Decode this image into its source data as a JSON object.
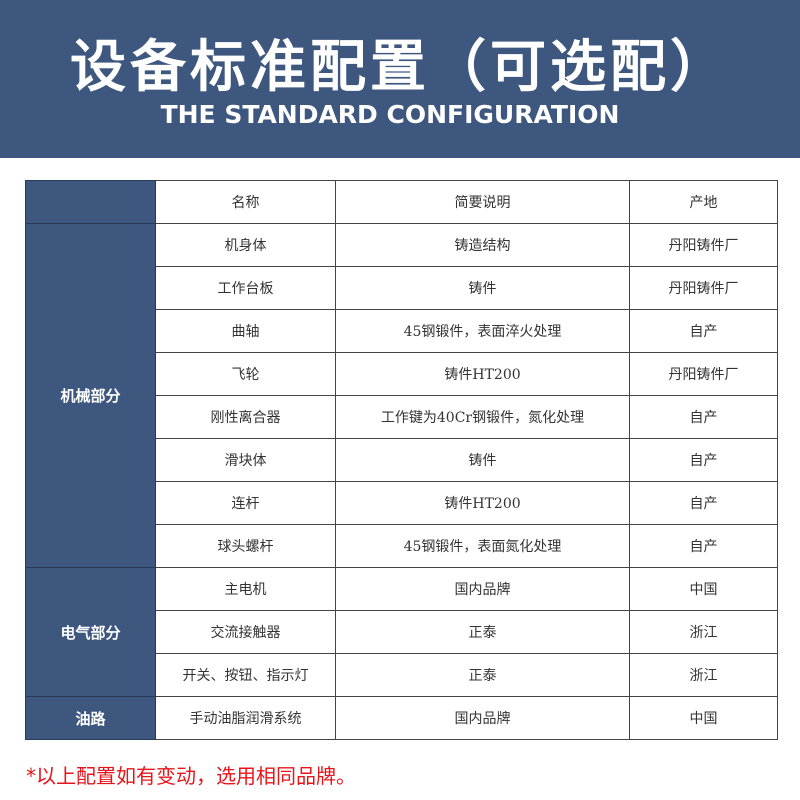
{
  "header": {
    "title": "设备标准配置（可选配）",
    "subtitle": "THE STANDARD CONFIGURATION"
  },
  "table": {
    "columns": [
      "",
      "名称",
      "简要说明",
      "产地"
    ],
    "groups": [
      {
        "category": "机械部分",
        "rows": [
          [
            "机身体",
            "铸造结构",
            "丹阳铸件厂"
          ],
          [
            "工作台板",
            "铸件",
            "丹阳铸件厂"
          ],
          [
            "曲轴",
            "45钢锻件，表面淬火处理",
            "自产"
          ],
          [
            "飞轮",
            "铸件HT200",
            "丹阳铸件厂"
          ],
          [
            "刚性离合器",
            "工作键为40Cr钢锻件，氮化处理",
            "自产"
          ],
          [
            "滑块体",
            "铸件",
            "自产"
          ],
          [
            "连杆",
            "铸件HT200",
            "自产"
          ],
          [
            "球头螺杆",
            "45钢锻件，表面氮化处理",
            "自产"
          ]
        ]
      },
      {
        "category": "电气部分",
        "rows": [
          [
            "主电机",
            "国内品牌",
            "中国"
          ],
          [
            "交流接触器",
            "正泰",
            "浙江"
          ],
          [
            "开关、按钮、指示灯",
            "正泰",
            "浙江"
          ]
        ]
      },
      {
        "category": "油路",
        "rows": [
          [
            "手动油脂润滑系统",
            "国内品牌",
            "中国"
          ]
        ]
      }
    ]
  },
  "note": "*以上配置如有变动，选用相同品牌。",
  "colors": {
    "banner": "#3e577f",
    "note": "#e8141b"
  }
}
